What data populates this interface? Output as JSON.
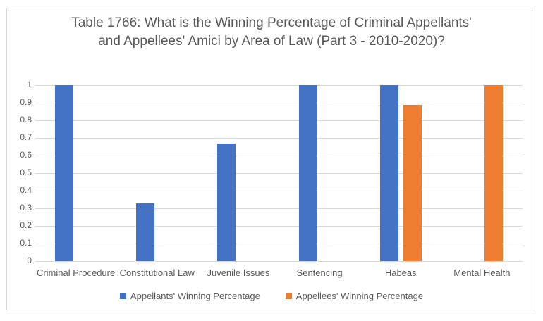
{
  "title": "Table 1766: What is the Winning Percentage of Criminal Appellants' and Appellees' Amici by Area of Law (Part 3 - 2010-2020)?",
  "chart_data": {
    "type": "bar",
    "title": "Table 1766: What is the Winning Percentage of Criminal Appellants' and Appellees' Amici by Area of Law (Part 3 - 2010-2020)?",
    "categories": [
      "Criminal Procedure",
      "Constitutional Law",
      "Juvenile Issues",
      "Sentencing",
      "Habeas",
      "Mental Health"
    ],
    "series": [
      {
        "name": "Appellants' Winning Percentage",
        "color": "#4472C4",
        "values": [
          1,
          0.33,
          0.67,
          1,
          1,
          null
        ]
      },
      {
        "name": "Appellees' Winning Percentage",
        "color": "#ED7D31",
        "values": [
          null,
          null,
          null,
          null,
          0.89,
          1
        ]
      }
    ],
    "xlabel": "",
    "ylabel": "",
    "ylim": [
      0,
      1
    ],
    "yticks": [
      0,
      0.1,
      0.2,
      0.3,
      0.4,
      0.5,
      0.6,
      0.7,
      0.8,
      0.9,
      1
    ],
    "ytick_labels": [
      "0",
      "0.1",
      "0.2",
      "0.3",
      "0.4",
      "0.5",
      "0.6",
      "0.7",
      "0.8",
      "0.9",
      "1"
    ],
    "grid": true,
    "legend_position": "bottom"
  },
  "colors": {
    "appellants_blue": "#4472C4",
    "appellees_orange": "#ED7D31",
    "text_gray": "#595959",
    "gridline": "#D9D9D9",
    "frame_border": "#D9D9D9"
  }
}
